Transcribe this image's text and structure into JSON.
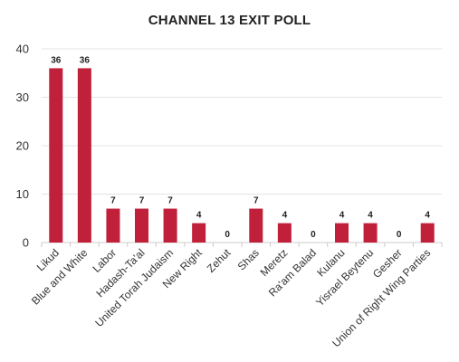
{
  "chart_data": {
    "type": "bar",
    "title": "CHANNEL 13 EXIT POLL",
    "xlabel": "",
    "ylabel": "",
    "categories": [
      "Likud",
      "Blue and White",
      "Labor",
      "Hadash-Ta'al",
      "United Torah Judaism",
      "New Right",
      "Zehut",
      "Shas",
      "Meretz",
      "Ra'am Balad",
      "Kulanu",
      "Yisrael Beytenu",
      "Gesher",
      "Union of Right Wing Parties"
    ],
    "values": [
      36,
      36,
      7,
      7,
      7,
      4,
      0,
      7,
      4,
      0,
      4,
      4,
      0,
      4
    ],
    "ylim": [
      0,
      40
    ],
    "yticks": [
      0,
      10,
      20,
      30,
      40
    ],
    "grid": true,
    "bar_color": "#c0203a"
  }
}
